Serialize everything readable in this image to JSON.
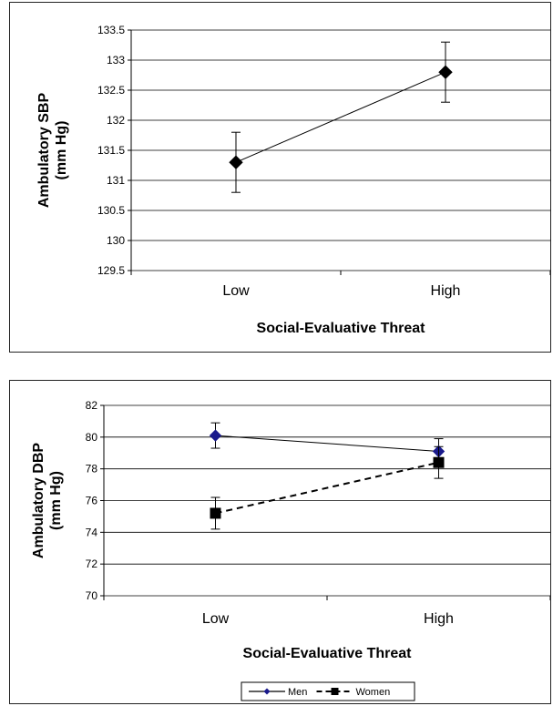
{
  "chart_data": [
    {
      "type": "line",
      "ylabel_lines": [
        "Ambulatory SBP",
        "(mm Hg)"
      ],
      "xlabel": "Social-Evaluative Threat",
      "categories": [
        "Low",
        "High"
      ],
      "ylim": [
        129.5,
        133.5
      ],
      "yticks": [
        "129.5",
        "130",
        "130.5",
        "131",
        "131.5",
        "132",
        "132.5",
        "133",
        "133.5"
      ],
      "grid": true,
      "series": [
        {
          "values": [
            131.3,
            132.8
          ],
          "error_low": [
            130.8,
            132.3
          ],
          "error_high": [
            131.8,
            133.3
          ],
          "color": "#000000",
          "marker": "diamond",
          "line": "solid"
        }
      ]
    },
    {
      "type": "line",
      "ylabel_lines": [
        "Ambulatory DBP",
        "(mm Hg)"
      ],
      "xlabel": "Social-Evaluative Threat",
      "categories": [
        "Low",
        "High"
      ],
      "ylim": [
        70,
        82
      ],
      "yticks": [
        "70",
        "72",
        "74",
        "76",
        "78",
        "80",
        "82"
      ],
      "grid": true,
      "legend": "bottom-center",
      "series": [
        {
          "name": "Men",
          "values": [
            80.1,
            79.1
          ],
          "error_low": [
            79.3,
            78.3
          ],
          "error_high": [
            80.9,
            79.9
          ],
          "color": "#1a1a8c",
          "marker": "diamond",
          "line": "solid"
        },
        {
          "name": "Women",
          "values": [
            75.2,
            78.4
          ],
          "error_low": [
            74.2,
            77.4
          ],
          "error_high": [
            76.2,
            79.4
          ],
          "color": "#000000",
          "marker": "square",
          "line": "dashed"
        }
      ]
    }
  ]
}
